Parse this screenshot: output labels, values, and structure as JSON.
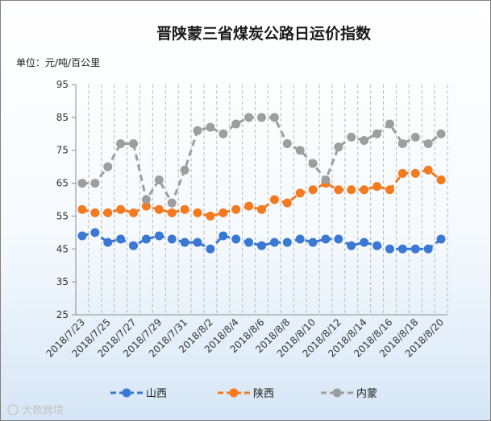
{
  "chart_data": {
    "type": "line",
    "title": "晋陕蒙三省煤炭公路日运价指数",
    "unit_label": "单位：元/吨/百公里",
    "ylim": [
      25,
      95
    ],
    "yticks": [
      25,
      35,
      45,
      55,
      65,
      75,
      85,
      95
    ],
    "grid": "vertical-dashed",
    "legend": "bottom",
    "x": [
      "2018/7/23",
      "2018/7/24",
      "2018/7/25",
      "2018/7/26",
      "2018/7/27",
      "2018/7/28",
      "2018/7/29",
      "2018/7/30",
      "2018/7/31",
      "2018/8/1",
      "2018/8/2",
      "2018/8/3",
      "2018/8/4",
      "2018/8/5",
      "2018/8/6",
      "2018/8/7",
      "2018/8/8",
      "2018/8/9",
      "2018/8/10",
      "2018/8/11",
      "2018/8/12",
      "2018/8/13",
      "2018/8/14",
      "2018/8/15",
      "2018/8/16",
      "2018/8/17",
      "2018/8/18",
      "2018/8/19",
      "2018/8/20"
    ],
    "xtick_labels": [
      "2018/7/23",
      "2018/7/25",
      "2018/7/27",
      "2018/7/29",
      "2018/7/31",
      "2018/8/2",
      "2018/8/4",
      "2018/8/6",
      "2018/8/8",
      "2018/8/10",
      "2018/8/12",
      "2018/8/14",
      "2018/8/16",
      "2018/8/18",
      "2018/8/20"
    ],
    "series": [
      {
        "name": "山西",
        "color": "#3a78d4",
        "values": [
          49,
          50,
          47,
          48,
          46,
          48,
          49,
          48,
          47,
          47,
          45,
          49,
          48,
          47,
          46,
          47,
          47,
          48,
          47,
          48,
          48,
          46,
          47,
          46,
          45,
          45,
          45,
          45,
          48
        ]
      },
      {
        "name": "陕西",
        "color": "#f47a20",
        "values": [
          57,
          56,
          56,
          57,
          56,
          58,
          57,
          56,
          57,
          56,
          55,
          56,
          57,
          58,
          57,
          60,
          59,
          62,
          63,
          65,
          63,
          63,
          63,
          64,
          63,
          68,
          68,
          69,
          66
        ]
      },
      {
        "name": "内蒙",
        "color": "#9e9e9e",
        "values": [
          65,
          65,
          70,
          77,
          77,
          60,
          66,
          59,
          69,
          81,
          82,
          80,
          83,
          85,
          85,
          85,
          77,
          75,
          71,
          66,
          76,
          79,
          78,
          80,
          83,
          77,
          79,
          77,
          80
        ]
      }
    ]
  },
  "watermark": "大数跨境"
}
